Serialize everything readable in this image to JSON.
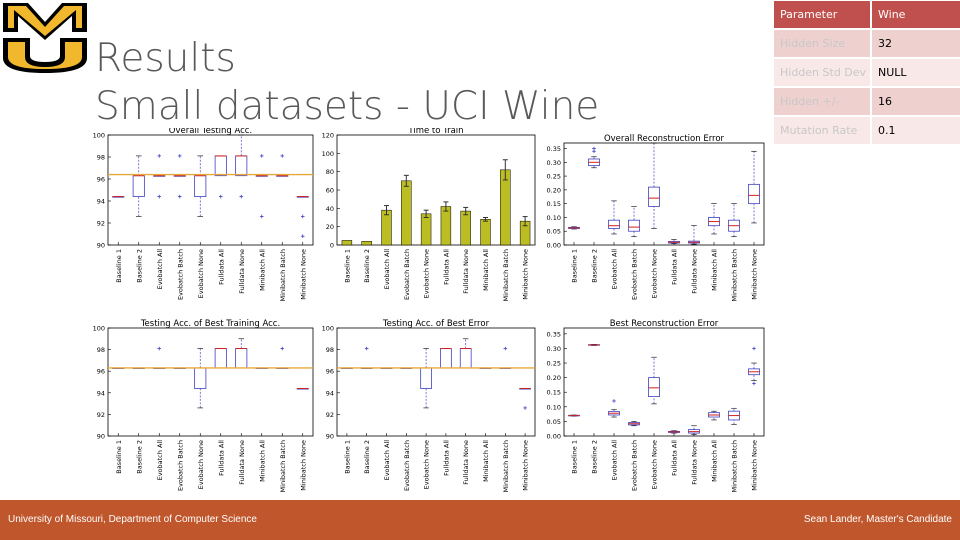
{
  "slide": {
    "title_line1": "Results",
    "title_line2": "Small datasets - UCI Wine",
    "footer_left": "University of Missouri, Department of Computer Science",
    "footer_right": "Sean Lander, Master's Candidate",
    "logo_text": "MU",
    "colors": {
      "footer": "#c0562b",
      "title": "#595959",
      "table_header": "#c0504d",
      "table_row_a": "#eed0cf",
      "table_row_b": "#f8e8e8",
      "logo_black": "#000000",
      "logo_gold": "#f1b82d"
    }
  },
  "params_table": {
    "header": {
      "key": "Parameter",
      "value": "Wine"
    },
    "rows": [
      {
        "key": "Hidden Size",
        "value": "32"
      },
      {
        "key": "Hidden Std Dev",
        "value": "NULL"
      },
      {
        "key": "Hidden +/-",
        "value": "16"
      },
      {
        "key": "Mutation Rate",
        "value": "0.1"
      }
    ]
  },
  "chart_data": [
    {
      "type": "box",
      "title": "Overall Testing Acc.",
      "categories": [
        "Baseline 1",
        "Baseline 2",
        "Evobatch All",
        "Evobatch Batch",
        "Evobatch None",
        "Fulldata All",
        "Fulldata None",
        "Minibatch All",
        "Minibatch Batch",
        "Minibatch None"
      ],
      "yticks": [
        "90",
        "92",
        "94",
        "96",
        "98",
        "100"
      ],
      "ylim": [
        90,
        100
      ],
      "reference_line": 96.4,
      "boxes": [
        {
          "min": 94.4,
          "q1": 94.4,
          "med": 94.4,
          "q3": 94.4,
          "max": 94.4,
          "outliers": []
        },
        {
          "min": 92.6,
          "q1": 94.4,
          "med": 96.3,
          "q3": 96.3,
          "max": 98.1,
          "outliers": []
        },
        {
          "min": 96.3,
          "q1": 96.3,
          "med": 96.3,
          "q3": 96.3,
          "max": 96.3,
          "outliers": [
            98.1,
            94.4
          ]
        },
        {
          "min": 96.3,
          "q1": 96.3,
          "med": 96.3,
          "q3": 96.3,
          "max": 96.3,
          "outliers": [
            98.1,
            94.4
          ]
        },
        {
          "min": 92.6,
          "q1": 94.4,
          "med": 96.3,
          "q3": 96.3,
          "max": 98.1,
          "outliers": []
        },
        {
          "min": 96.3,
          "q1": 96.3,
          "med": 98.1,
          "q3": 98.1,
          "max": 98.1,
          "outliers": [
            94.4
          ]
        },
        {
          "min": 96.3,
          "q1": 96.3,
          "med": 98.1,
          "q3": 98.1,
          "max": 100,
          "outliers": [
            94.4
          ]
        },
        {
          "min": 96.3,
          "q1": 96.3,
          "med": 96.3,
          "q3": 96.3,
          "max": 96.3,
          "outliers": [
            98.1,
            92.6
          ]
        },
        {
          "min": 96.3,
          "q1": 96.3,
          "med": 96.3,
          "q3": 96.3,
          "max": 96.3,
          "outliers": [
            98.1
          ]
        },
        {
          "min": 94.4,
          "q1": 94.4,
          "med": 94.4,
          "q3": 94.4,
          "max": 94.4,
          "outliers": [
            92.6,
            90.8
          ]
        }
      ]
    },
    {
      "type": "bar",
      "title": "Time to Train",
      "categories": [
        "Baseline 1",
        "Baseline 2",
        "Evobatch All",
        "Evobatch Batch",
        "Evobatch None",
        "Fulldata All",
        "Fulldata None",
        "Minibatch All",
        "Minibatch Batch",
        "Minibatch None"
      ],
      "yticks": [
        "0",
        "20",
        "40",
        "60",
        "80",
        "100",
        "120"
      ],
      "ylim": [
        0,
        120
      ],
      "values": [
        5,
        4,
        38,
        70,
        34,
        42,
        37,
        28,
        82,
        26
      ],
      "errors": [
        0,
        0,
        5,
        6,
        4,
        5,
        4,
        2,
        11,
        5
      ]
    },
    {
      "type": "box",
      "title": "Overall Reconstruction Error",
      "categories": [
        "Baseline 1",
        "Baseline 2",
        "Evobatch All",
        "Evobatch Batch",
        "Evobatch None",
        "Fulldata All",
        "Fulldata None",
        "Minibatch All",
        "Minibatch Batch",
        "Minibatch None"
      ],
      "yticks": [
        "0.00",
        "0.05",
        "0.10",
        "0.15",
        "0.20",
        "0.25",
        "0.30",
        "0.35"
      ],
      "ylim": [
        0,
        0.37
      ],
      "boxes": [
        {
          "min": 0.058,
          "q1": 0.06,
          "med": 0.062,
          "q3": 0.064,
          "max": 0.066,
          "outliers": []
        },
        {
          "min": 0.28,
          "q1": 0.288,
          "med": 0.3,
          "q3": 0.312,
          "max": 0.32,
          "outliers": [
            0.34,
            0.35
          ]
        },
        {
          "min": 0.04,
          "q1": 0.06,
          "med": 0.07,
          "q3": 0.09,
          "max": 0.16,
          "outliers": []
        },
        {
          "min": 0.03,
          "q1": 0.05,
          "med": 0.065,
          "q3": 0.09,
          "max": 0.14,
          "outliers": []
        },
        {
          "min": 0.06,
          "q1": 0.14,
          "med": 0.17,
          "q3": 0.21,
          "max": 0.37,
          "outliers": []
        },
        {
          "min": 0.005,
          "q1": 0.007,
          "med": 0.01,
          "q3": 0.013,
          "max": 0.02,
          "outliers": []
        },
        {
          "min": 0.003,
          "q1": 0.007,
          "med": 0.01,
          "q3": 0.014,
          "max": 0.07,
          "outliers": []
        },
        {
          "min": 0.04,
          "q1": 0.07,
          "med": 0.085,
          "q3": 0.1,
          "max": 0.15,
          "outliers": []
        },
        {
          "min": 0.03,
          "q1": 0.05,
          "med": 0.07,
          "q3": 0.09,
          "max": 0.15,
          "outliers": []
        },
        {
          "min": 0.08,
          "q1": 0.15,
          "med": 0.18,
          "q3": 0.22,
          "max": 0.34,
          "outliers": []
        }
      ]
    },
    {
      "type": "box",
      "title": "Testing Acc. of Best Training Acc.",
      "categories": [
        "Baseline 1",
        "Baseline 2",
        "Evobatch All",
        "Evobatch Batch",
        "Evobatch None",
        "Fulldata All",
        "Fulldata None",
        "Minibatch All",
        "Minibatch Batch",
        "Minibatch None"
      ],
      "yticks": [
        "90",
        "92",
        "94",
        "96",
        "98",
        "100"
      ],
      "ylim": [
        90,
        100
      ],
      "reference_line": 96.3,
      "boxes": [
        {
          "min": 96.3,
          "q1": 96.3,
          "med": 96.3,
          "q3": 96.3,
          "max": 96.3,
          "outliers": []
        },
        {
          "min": 96.3,
          "q1": 96.3,
          "med": 96.3,
          "q3": 96.3,
          "max": 96.3,
          "outliers": []
        },
        {
          "min": 96.3,
          "q1": 96.3,
          "med": 96.3,
          "q3": 96.3,
          "max": 96.3,
          "outliers": [
            98.1
          ]
        },
        {
          "min": 96.3,
          "q1": 96.3,
          "med": 96.3,
          "q3": 96.3,
          "max": 96.3,
          "outliers": []
        },
        {
          "min": 92.6,
          "q1": 94.4,
          "med": 96.3,
          "q3": 96.3,
          "max": 98.1,
          "outliers": []
        },
        {
          "min": 96.3,
          "q1": 96.3,
          "med": 98.1,
          "q3": 98.1,
          "max": 98.1,
          "outliers": []
        },
        {
          "min": 96.3,
          "q1": 96.3,
          "med": 98.1,
          "q3": 98.1,
          "max": 99.0,
          "outliers": []
        },
        {
          "min": 96.3,
          "q1": 96.3,
          "med": 96.3,
          "q3": 96.3,
          "max": 96.3,
          "outliers": []
        },
        {
          "min": 96.3,
          "q1": 96.3,
          "med": 96.3,
          "q3": 96.3,
          "max": 96.3,
          "outliers": [
            98.1
          ]
        },
        {
          "min": 94.4,
          "q1": 94.4,
          "med": 94.4,
          "q3": 94.4,
          "max": 94.4,
          "outliers": []
        }
      ]
    },
    {
      "type": "box",
      "title": "Testing Acc. of Best Error",
      "categories": [
        "Baseline 1",
        "Baseline 2",
        "Evobatch All",
        "Evobatch Batch",
        "Evobatch None",
        "Fulldata All",
        "Fulldata None",
        "Minibatch All",
        "Minibatch Batch",
        "Minibatch None"
      ],
      "yticks": [
        "90",
        "92",
        "94",
        "96",
        "98",
        "100"
      ],
      "ylim": [
        90,
        100
      ],
      "reference_line": 96.3,
      "boxes": [
        {
          "min": 96.3,
          "q1": 96.3,
          "med": 96.3,
          "q3": 96.3,
          "max": 96.3,
          "outliers": []
        },
        {
          "min": 96.3,
          "q1": 96.3,
          "med": 96.3,
          "q3": 96.3,
          "max": 96.3,
          "outliers": [
            98.1
          ]
        },
        {
          "min": 96.3,
          "q1": 96.3,
          "med": 96.3,
          "q3": 96.3,
          "max": 96.3,
          "outliers": []
        },
        {
          "min": 96.3,
          "q1": 96.3,
          "med": 96.3,
          "q3": 96.3,
          "max": 96.3,
          "outliers": []
        },
        {
          "min": 92.6,
          "q1": 94.4,
          "med": 96.3,
          "q3": 96.3,
          "max": 98.1,
          "outliers": []
        },
        {
          "min": 96.3,
          "q1": 96.3,
          "med": 98.1,
          "q3": 98.1,
          "max": 98.1,
          "outliers": []
        },
        {
          "min": 96.3,
          "q1": 96.3,
          "med": 98.1,
          "q3": 98.1,
          "max": 99.0,
          "outliers": []
        },
        {
          "min": 96.3,
          "q1": 96.3,
          "med": 96.3,
          "q3": 96.3,
          "max": 96.3,
          "outliers": []
        },
        {
          "min": 96.3,
          "q1": 96.3,
          "med": 96.3,
          "q3": 96.3,
          "max": 96.3,
          "outliers": [
            98.1
          ]
        },
        {
          "min": 94.4,
          "q1": 94.4,
          "med": 94.4,
          "q3": 94.4,
          "max": 94.4,
          "outliers": [
            92.6
          ]
        }
      ]
    },
    {
      "type": "box",
      "title": "Best Reconstruction Error",
      "categories": [
        "Baseline 1",
        "Baseline 2",
        "Evobatch All",
        "Evobatch Batch",
        "Evobatch None",
        "Fulldata All",
        "Fulldata None",
        "Minibatch All",
        "Minibatch Batch",
        "Minibatch None"
      ],
      "yticks": [
        "0.00",
        "0.05",
        "0.10",
        "0.15",
        "0.20",
        "0.25",
        "0.30",
        "0.35"
      ],
      "ylim": [
        0,
        0.37
      ],
      "boxes": [
        {
          "min": 0.068,
          "q1": 0.069,
          "med": 0.07,
          "q3": 0.071,
          "max": 0.072,
          "outliers": []
        },
        {
          "min": 0.31,
          "q1": 0.311,
          "med": 0.312,
          "q3": 0.313,
          "max": 0.314,
          "outliers": []
        },
        {
          "min": 0.065,
          "q1": 0.072,
          "med": 0.078,
          "q3": 0.084,
          "max": 0.09,
          "outliers": [
            0.12
          ]
        },
        {
          "min": 0.035,
          "q1": 0.038,
          "med": 0.042,
          "q3": 0.046,
          "max": 0.05,
          "outliers": []
        },
        {
          "min": 0.11,
          "q1": 0.135,
          "med": 0.165,
          "q3": 0.2,
          "max": 0.27,
          "outliers": []
        },
        {
          "min": 0.01,
          "q1": 0.012,
          "med": 0.014,
          "q3": 0.016,
          "max": 0.018,
          "outliers": []
        },
        {
          "min": 0.005,
          "q1": 0.01,
          "med": 0.015,
          "q3": 0.022,
          "max": 0.035,
          "outliers": []
        },
        {
          "min": 0.055,
          "q1": 0.065,
          "med": 0.072,
          "q3": 0.08,
          "max": 0.085,
          "outliers": []
        },
        {
          "min": 0.04,
          "q1": 0.055,
          "med": 0.07,
          "q3": 0.085,
          "max": 0.095,
          "outliers": []
        },
        {
          "min": 0.19,
          "q1": 0.21,
          "med": 0.22,
          "q3": 0.23,
          "max": 0.25,
          "outliers": [
            0.3,
            0.18
          ]
        }
      ]
    }
  ]
}
